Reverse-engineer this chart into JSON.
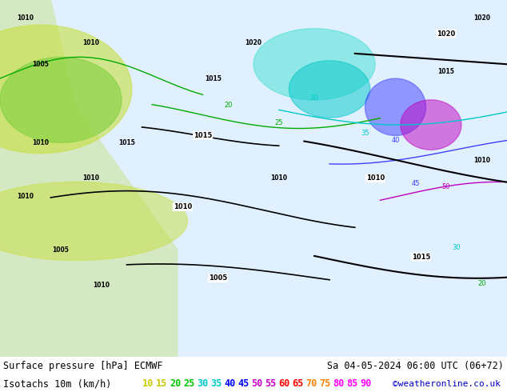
{
  "title_line1": "Surface pressure [hPa] ECMWF",
  "title_line2_date": "Sa 04-05-2024 06:00 UTC (06+72)",
  "isotach_label": "Isotachs 10m (km/h)",
  "copyright": "©weatheronline.co.uk",
  "isotach_values": [
    10,
    15,
    20,
    25,
    30,
    35,
    40,
    45,
    50,
    55,
    60,
    65,
    70,
    75,
    80,
    85,
    90
  ],
  "isotach_colors": [
    "#c8c800",
    "#c8c800",
    "#00c800",
    "#00c800",
    "#00c8c8",
    "#00c8c8",
    "#0000ff",
    "#0000ff",
    "#c800c8",
    "#c800c8",
    "#ff0000",
    "#ff0000",
    "#ff8000",
    "#ff8000",
    "#ff00ff",
    "#ff00ff",
    "#ff00ff"
  ],
  "bg_color": "#ffffff",
  "map_bg": "#e8f4e8",
  "text_color": "#000000",
  "fig_width": 6.34,
  "fig_height": 4.9,
  "dpi": 100
}
